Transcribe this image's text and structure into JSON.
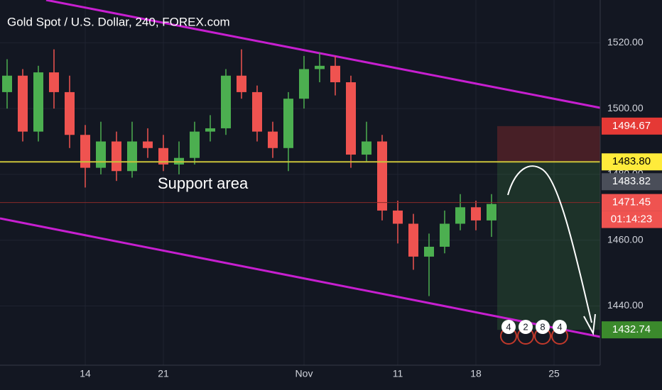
{
  "chart_data": {
    "type": "candlestick",
    "title": "Gold Spot / U.S. Dollar, 240, FOREX.com",
    "categories": [
      null,
      null,
      null,
      null,
      null,
      "14",
      null,
      null,
      null,
      null,
      "21",
      null,
      null,
      null,
      null,
      null,
      null,
      null,
      null,
      "Nov",
      null,
      null,
      null,
      null,
      null,
      "11",
      null,
      null,
      null,
      null,
      "18",
      null,
      null,
      null,
      null,
      "25",
      null,
      null
    ],
    "open": [
      1505,
      1510,
      1493,
      1511,
      1505,
      1492,
      1482,
      1490,
      1481,
      1490,
      1488,
      1483,
      1485,
      1493,
      1494,
      1510,
      1505,
      1493,
      1488,
      1503,
      1512,
      1513,
      1508,
      1486,
      1490,
      1469,
      1465,
      1455,
      1458,
      1465,
      1470,
      1466,
      null,
      null,
      null,
      null,
      null,
      null
    ],
    "high": [
      1515,
      1512,
      1513,
      1518,
      1510,
      1495,
      1496,
      1493,
      1496,
      1494,
      1492,
      1490,
      1496,
      1498,
      1512,
      1518,
      1507,
      1496,
      1505,
      1516,
      1517,
      1516,
      1510,
      1496,
      1492,
      1472,
      1468,
      1462,
      1469,
      1474,
      1472,
      1474,
      null,
      null,
      null,
      null,
      null,
      null
    ],
    "low": [
      1500,
      1490,
      1490,
      1500,
      1488,
      1476,
      1480,
      1478,
      1479,
      1485,
      1481,
      1480,
      1483,
      1490,
      1492,
      1503,
      1490,
      1485,
      1481,
      1500,
      1508,
      1504,
      1482,
      1484,
      1466,
      1459,
      1451,
      1443,
      1456,
      1463,
      1463,
      1461,
      null,
      null,
      null,
      null,
      null,
      null
    ],
    "close": [
      1510,
      1493,
      1511,
      1505,
      1492,
      1482,
      1490,
      1481,
      1490,
      1488,
      1483,
      1485,
      1493,
      1494,
      1510,
      1505,
      1493,
      1488,
      1503,
      1512,
      1513,
      1508,
      1486,
      1490,
      1469,
      1465,
      1455,
      1458,
      1465,
      1470,
      1466,
      1471,
      null,
      null,
      null,
      null,
      null,
      null
    ],
    "up_color": "#4caf50",
    "down_color": "#ef5350",
    "ylim": [
      1422,
      1533
    ],
    "yticks": [
      {
        "value": 1440,
        "label": "1440.00"
      },
      {
        "value": 1460,
        "label": "1460.00"
      },
      {
        "value": 1480,
        "label": "1480.00"
      },
      {
        "value": 1500,
        "label": "1500.00"
      },
      {
        "value": 1520,
        "label": "1520.00"
      }
    ],
    "grid": true,
    "annotations": [
      "Support area"
    ],
    "price_labels": [
      {
        "value": 1494.67,
        "color": "#e53935"
      },
      {
        "value": 1483.8,
        "label": "1483.80",
        "color": "#ffeb3b"
      },
      {
        "value": 1483.82,
        "color": "#4a4e59"
      },
      {
        "value": 1471.45,
        "color": "#ef5350"
      },
      {
        "value": 1432.74,
        "color": "#3b8a2c"
      }
    ],
    "countdown": "01:14:23",
    "badges": [
      "4",
      "2",
      "8",
      "4"
    ]
  }
}
